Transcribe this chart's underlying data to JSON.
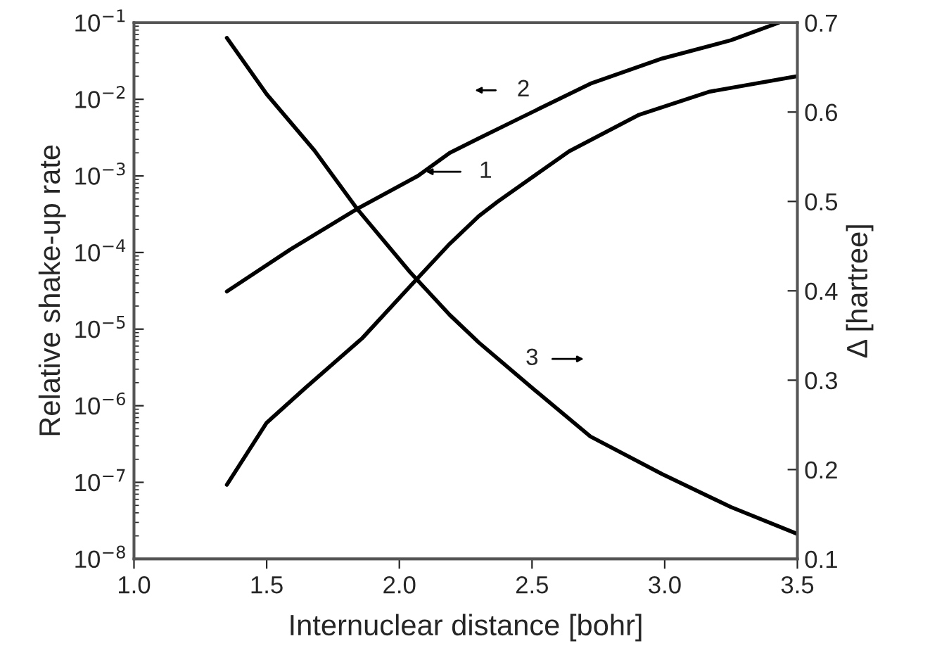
{
  "chart_data": {
    "type": "line",
    "xlabel": "Internuclear distance [bohr]",
    "ylabel": "Relative shake-up rate",
    "y2label": "Δ [hartree]",
    "log": "y",
    "legend": "top",
    "xlim": [
      1.0,
      3.5
    ],
    "xticks": [
      {
        "value": 1.0,
        "label": "1.0"
      },
      {
        "value": 1.5,
        "label": "1.5"
      },
      {
        "value": 2.0,
        "label": "2.0"
      },
      {
        "value": 2.5,
        "label": "2.5"
      },
      {
        "value": 3.0,
        "label": "3.0"
      },
      {
        "value": 3.5,
        "label": "3.5"
      }
    ],
    "ylim": [
      1e-08,
      0.1
    ],
    "yticks": [
      {
        "value": 1e-08,
        "label": "10$^{−8}$"
      },
      {
        "value": 1e-07,
        "label": "10$^{−7}$"
      },
      {
        "value": 1e-06,
        "label": "10$^{−6}$"
      },
      {
        "value": 1e-05,
        "label": "10$^{−5}$"
      },
      {
        "value": 0.0001,
        "label": "10$^{−4}$"
      },
      {
        "value": 0.001,
        "label": "10$^{−3}$"
      },
      {
        "value": 0.01,
        "label": "10$^{−2}$"
      },
      {
        "value": 0.1,
        "label": "10$^{−1}$"
      }
    ],
    "y2lim": [
      0.1,
      0.7
    ],
    "y2ticks": [
      0.1,
      0.2,
      0.3,
      0.4,
      0.5,
      0.6,
      0.7
    ],
    "series": [
      {
        "name": "1",
        "color": "#000000",
        "x": [
          1.35,
          1.5,
          1.645,
          1.86,
          2.04,
          2.19,
          2.3,
          2.37,
          2.64,
          2.9,
          3.17,
          3.5
        ],
        "values": [
          9.3e-08,
          6e-07,
          1.7e-06,
          7.6e-06,
          3.6e-05,
          0.00013,
          0.0003,
          0.00046,
          0.0021,
          0.0062,
          0.0126,
          0.02
        ]
      },
      {
        "name": "2",
        "color": "#000000",
        "x": [
          1.35,
          1.59,
          1.84,
          2.07,
          2.19,
          2.3,
          2.46,
          2.72,
          2.99,
          3.25,
          3.43
        ],
        "values": [
          3.1e-05,
          0.00011,
          0.00037,
          0.001,
          0.002,
          0.0031,
          0.0058,
          0.016,
          0.034,
          0.059,
          0.1
        ]
      },
      {
        "name": "3",
        "color": "#000000",
        "axis": "y2",
        "x": [
          1.35,
          1.5,
          1.68,
          1.84,
          2.04,
          2.19,
          2.3,
          2.51,
          2.72,
          2.99,
          3.25,
          3.5
        ],
        "values": [
          0.683,
          0.62,
          0.557,
          0.492,
          0.421,
          0.373,
          0.342,
          0.289,
          0.237,
          0.195,
          0.158,
          0.128
        ]
      }
    ]
  }
}
